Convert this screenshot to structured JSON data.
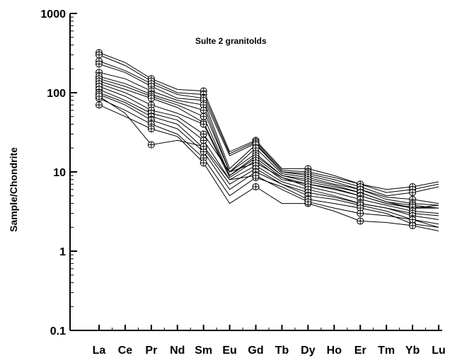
{
  "chart_data": {
    "type": "line",
    "title": "Sulte 2 granitolds",
    "xlabel": "",
    "ylabel": "Sample/Chondrite",
    "yscale": "log",
    "ylim": [
      0.1,
      1000
    ],
    "yticks": [
      "0.1",
      "1",
      "10",
      "100",
      "1000"
    ],
    "categories": [
      "La",
      "Ce",
      "Pr",
      "Nd",
      "Sm",
      "Eu",
      "Gd",
      "Tb",
      "Dy",
      "Ho",
      "Er",
      "Tm",
      "Yb",
      "Lu"
    ],
    "marker_categories": [
      "La",
      "Pr",
      "Sm",
      "Gd",
      "Dy",
      "Er",
      "Yb"
    ],
    "grid": false,
    "series": [
      {
        "values": [
          320,
          240,
          150,
          110,
          105,
          18,
          25,
          11,
          11,
          9,
          7,
          6,
          6.5,
          7.5
        ]
      },
      {
        "values": [
          300,
          220,
          140,
          100,
          95,
          17,
          24,
          10.5,
          10,
          8.5,
          7,
          5.5,
          6,
          7
        ]
      },
      {
        "values": [
          250,
          190,
          130,
          95,
          85,
          16,
          23,
          10,
          9.5,
          8,
          6.5,
          5,
          5.5,
          6.5
        ]
      },
      {
        "values": [
          230,
          180,
          120,
          85,
          80,
          11,
          22,
          10,
          9,
          7.5,
          6,
          4.8,
          4.5,
          4
        ]
      },
      {
        "values": [
          180,
          150,
          105,
          80,
          70,
          10,
          20,
          9.5,
          8.5,
          7,
          6,
          4.5,
          4,
          3.8
        ]
      },
      {
        "values": [
          160,
          130,
          95,
          75,
          60,
          10,
          17,
          9,
          8,
          6.8,
          5.5,
          4.2,
          3.8,
          3.5
        ]
      },
      {
        "values": [
          150,
          120,
          90,
          70,
          50,
          9,
          16,
          9,
          7.5,
          6.5,
          5.5,
          4.2,
          3.5,
          3.5
        ]
      },
      {
        "values": [
          140,
          110,
          85,
          65,
          42,
          9,
          15,
          8.5,
          7,
          6.2,
          5,
          4,
          3.5,
          3.8
        ]
      },
      {
        "values": [
          130,
          100,
          70,
          55,
          40,
          8.5,
          14,
          8,
          7,
          6,
          5,
          4,
          3.6,
          3.5
        ]
      },
      {
        "values": [
          120,
          90,
          60,
          50,
          30,
          10,
          13,
          8.5,
          6.5,
          5.5,
          4.5,
          3.8,
          3.2,
          3
        ]
      },
      {
        "values": [
          110,
          80,
          55,
          45,
          25,
          8,
          12,
          7.5,
          6,
          5,
          4,
          3.5,
          3,
          2.8
        ]
      },
      {
        "values": [
          100,
          75,
          50,
          40,
          20,
          7,
          11,
          7,
          5.5,
          4.8,
          4,
          3.5,
          2.8,
          2.5
        ]
      },
      {
        "values": [
          95,
          70,
          45,
          35,
          18,
          6,
          10,
          7,
          5,
          4.5,
          3.8,
          3.2,
          2.5,
          2.2
        ]
      },
      {
        "values": [
          85,
          60,
          40,
          30,
          15,
          5,
          8.5,
          6.5,
          4.5,
          4,
          3.5,
          3,
          2.2,
          2
        ]
      },
      {
        "values": [
          70,
          50,
          35,
          28,
          13,
          4,
          6.5,
          4,
          4,
          3.2,
          2.4,
          2.3,
          2.1,
          1.8
        ]
      },
      {
        "values": [
          90,
          55,
          22,
          25,
          21,
          8,
          9,
          6,
          4.2,
          3.5,
          3,
          2.8,
          2.5,
          2
        ]
      }
    ]
  }
}
